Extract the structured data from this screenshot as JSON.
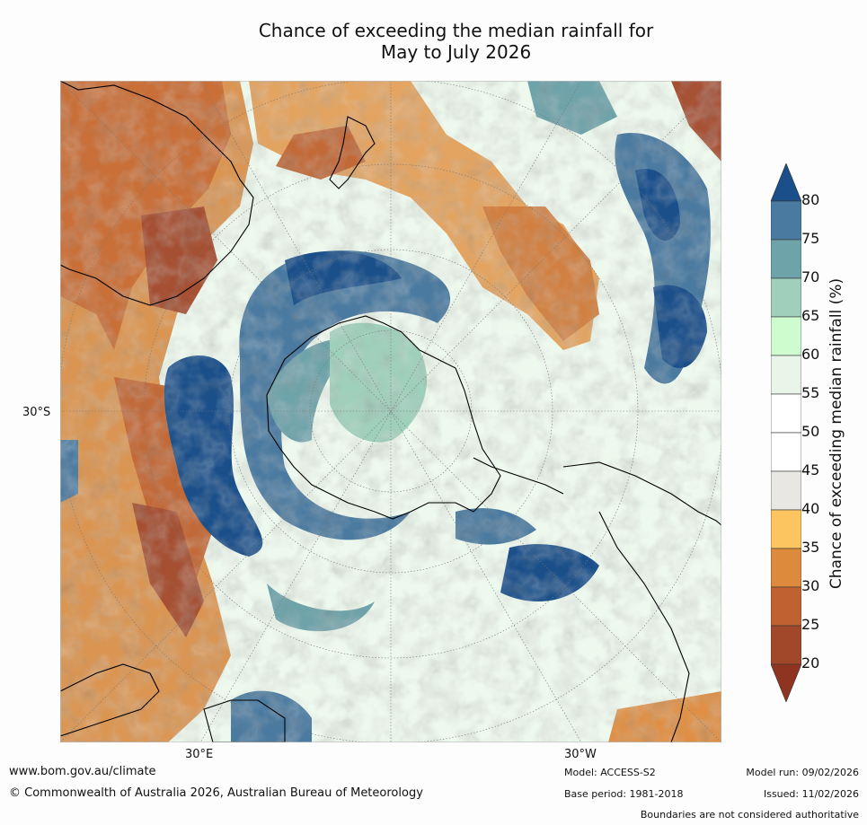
{
  "title": {
    "line1": "Chance of exceeding the median rainfall for",
    "line2": "May to July 2026"
  },
  "map": {
    "lat_labels": [
      "30°S"
    ],
    "lon_labels": [
      "30°E",
      "30°W"
    ]
  },
  "colorbar": {
    "label": "Chance of exceeding median rainfall (%)",
    "ticks": [
      "80",
      "75",
      "70",
      "65",
      "60",
      "55",
      "50",
      "45",
      "40",
      "35",
      "30",
      "25",
      "20"
    ],
    "colors": [
      "#1a4f8a",
      "#4a7aa0",
      "#6fa3aa",
      "#9fd0bc",
      "#cffbd0",
      "#eaf5ea",
      "#ffffff",
      "#ffffff",
      "#e9e7e3",
      "#fdc560",
      "#dd8a3c",
      "#c0622f",
      "#a2482a",
      "#8e3420"
    ]
  },
  "footer": {
    "website": "www.bom.gov.au/climate",
    "copyright": "© Commonwealth of Australia 2026, Australian Bureau of Meteorology",
    "model": "Model: ACCESS-S2",
    "base_period": "Base period: 1981-2018",
    "model_run": "Model run: 09/02/2026",
    "issued": "Issued: 11/02/2026",
    "disclaimer": "Boundaries are not considered authoritative"
  }
}
